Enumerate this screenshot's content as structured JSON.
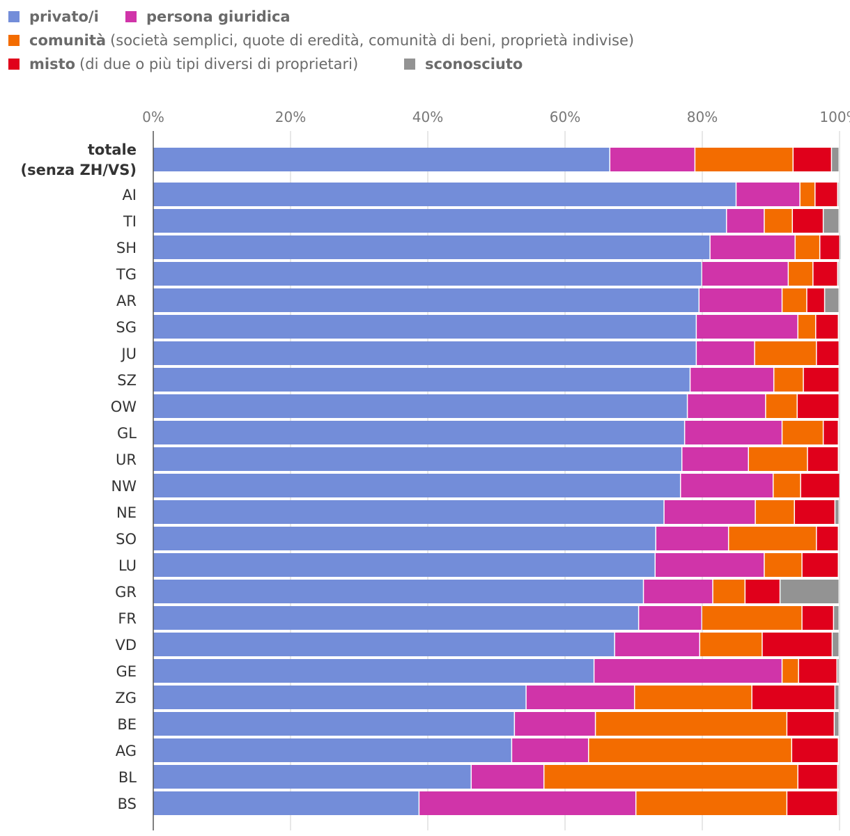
{
  "legend": [
    {
      "name": "privato/i",
      "desc": "",
      "color": "#738dd9"
    },
    {
      "name": "persona giuridica",
      "desc": "",
      "color": "#d034a9"
    },
    {
      "name": "comunità",
      "desc": "(società semplici, quote di eredità, comunità di beni, proprietà indivise)",
      "color": "#f36c00"
    },
    {
      "name": "misto",
      "desc": "(di due o più tipi diversi di proprietari)",
      "color": "#e0001b"
    },
    {
      "name": "sconosciuto",
      "desc": "",
      "color": "#939393"
    }
  ],
  "chart_data": {
    "type": "bar",
    "orientation": "horizontal",
    "stacked": true,
    "xlim": [
      0,
      100
    ],
    "xticks": [
      "0%",
      "20%",
      "40%",
      "60%",
      "80%",
      "100%"
    ],
    "grid": true,
    "legend_position": "top",
    "categories": [
      [
        "totale",
        "(senza ZH/VS)"
      ],
      "AI",
      "TI",
      "SH",
      "TG",
      "AR",
      "SG",
      "JU",
      "SZ",
      "OW",
      "GL",
      "UR",
      "NW",
      "NE",
      "SO",
      "LU",
      "GR",
      "FR",
      "VD",
      "GE",
      "ZG",
      "BE",
      "AG",
      "BL",
      "BS"
    ],
    "series": [
      {
        "name": "privato/i",
        "color": "#738dd9",
        "values": [
          66.6,
          85.0,
          83.6,
          81.2,
          80.0,
          79.6,
          79.2,
          79.2,
          78.3,
          77.9,
          77.5,
          77.1,
          76.9,
          74.5,
          73.3,
          73.2,
          71.5,
          70.8,
          67.3,
          64.3,
          54.4,
          52.7,
          52.3,
          46.4,
          38.8
        ]
      },
      {
        "name": "persona giuridica",
        "color": "#d034a9",
        "values": [
          12.4,
          9.3,
          5.5,
          12.4,
          12.6,
          12.1,
          14.8,
          8.5,
          12.2,
          11.4,
          14.2,
          9.7,
          13.5,
          13.3,
          10.6,
          15.9,
          10.1,
          9.2,
          12.4,
          27.4,
          15.8,
          11.8,
          11.2,
          10.6,
          31.6
        ]
      },
      {
        "name": "comunità",
        "color": "#f36c00",
        "values": [
          14.3,
          2.2,
          4.1,
          3.6,
          3.6,
          3.6,
          2.6,
          9.0,
          4.3,
          4.6,
          6.0,
          8.6,
          4.0,
          5.7,
          12.8,
          5.5,
          4.7,
          14.6,
          9.1,
          2.4,
          17.1,
          27.9,
          29.6,
          37.0,
          22.0
        ]
      },
      {
        "name": "misto",
        "color": "#e0001b",
        "values": [
          5.6,
          3.3,
          4.5,
          2.9,
          3.6,
          2.6,
          3.3,
          3.3,
          5.2,
          6.1,
          2.2,
          4.5,
          5.7,
          5.9,
          3.2,
          5.3,
          5.1,
          4.6,
          10.2,
          5.6,
          12.1,
          6.9,
          6.8,
          5.8,
          7.4
        ]
      },
      {
        "name": "sconosciuto",
        "color": "#939393",
        "values": [
          1.1,
          0.2,
          2.3,
          0.2,
          0.2,
          2.1,
          0.1,
          0.0,
          0.0,
          0.0,
          0.1,
          0.1,
          0.1,
          0.6,
          0.1,
          0.1,
          8.6,
          0.8,
          1.0,
          0.3,
          0.6,
          0.7,
          0.1,
          0.2,
          0.2
        ]
      }
    ]
  }
}
